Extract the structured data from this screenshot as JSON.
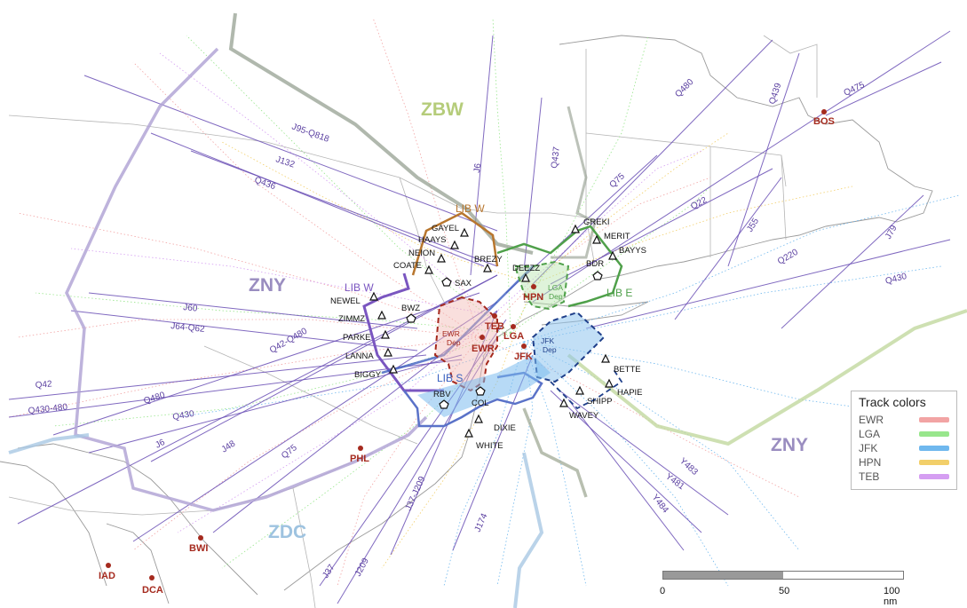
{
  "centers": [
    {
      "key": "zbw",
      "label": "ZBW",
      "color": "#b5cc7a"
    },
    {
      "key": "zny_west",
      "label": "ZNY",
      "color": "#9a8dc0"
    },
    {
      "key": "zny_east",
      "label": "ZNY",
      "color": "#9a8dc0"
    },
    {
      "key": "zdc",
      "label": "ZDC",
      "color": "#9ec3e0"
    }
  ],
  "regions": [
    {
      "key": "lib_w_north",
      "label": "LIB W",
      "color": "#b8762e"
    },
    {
      "key": "lib_w_west",
      "label": "LIB W",
      "color": "#7a56c0"
    },
    {
      "key": "lib_s",
      "label": "LIB S",
      "color": "#3a62c0"
    },
    {
      "key": "lib_e",
      "label": "LIB E",
      "color": "#4fa04a"
    }
  ],
  "departure_areas": [
    {
      "key": "ewr",
      "line1": "EWR",
      "line2": "Dep",
      "color": "#a52a1e"
    },
    {
      "key": "lga",
      "line1": "LGA",
      "line2": "Dep",
      "color": "#4fa04a"
    },
    {
      "key": "jfk",
      "line1": "JFK",
      "line2": "Dep",
      "color": "#1f3f8a"
    }
  ],
  "routes": [
    "J95-Q818",
    "J132",
    "Q436",
    "J6",
    "Q437",
    "Q480",
    "Q439",
    "Q475",
    "Q75",
    "Q22",
    "J55",
    "J79",
    "Q220",
    "Q430",
    "J60",
    "J64-Q62",
    "Q42-Q480",
    "Q42",
    "Q480",
    "Q430-480",
    "Q430",
    "J6",
    "J48",
    "Q75",
    "J37-J209",
    "J174",
    "J37",
    "J209",
    "Y483",
    "Y481",
    "Y484"
  ],
  "fixes": [
    "GAYEL",
    "HAAYS",
    "NEION",
    "COATE",
    "SAX",
    "BREZY",
    "DEEZZ",
    "GREKI",
    "MERIT",
    "BAYYS",
    "BDR",
    "NEWEL",
    "ZIMMZ",
    "BWZ",
    "PARKE",
    "LANNA",
    "BIGGY",
    "RBV",
    "COL",
    "DIXIE",
    "WHITE",
    "BETTE",
    "HAPIE",
    "SHIPP",
    "WAVEY"
  ],
  "airports": [
    "BOS",
    "HPN",
    "TEB",
    "LGA",
    "EWR",
    "JFK",
    "PHL",
    "BWI",
    "IAD",
    "DCA"
  ],
  "legend": {
    "title": "Track colors",
    "items": [
      {
        "label": "EWR",
        "color": "#f2a4a4"
      },
      {
        "label": "LGA",
        "color": "#98e68c"
      },
      {
        "label": "JFK",
        "color": "#6fb8ee"
      },
      {
        "label": "HPN",
        "color": "#f2cf6a"
      },
      {
        "label": "TEB",
        "color": "#d59ef2"
      }
    ]
  },
  "scale": {
    "ticks": [
      "0",
      "50",
      "100 nm"
    ],
    "fill_fraction": 0.5
  }
}
